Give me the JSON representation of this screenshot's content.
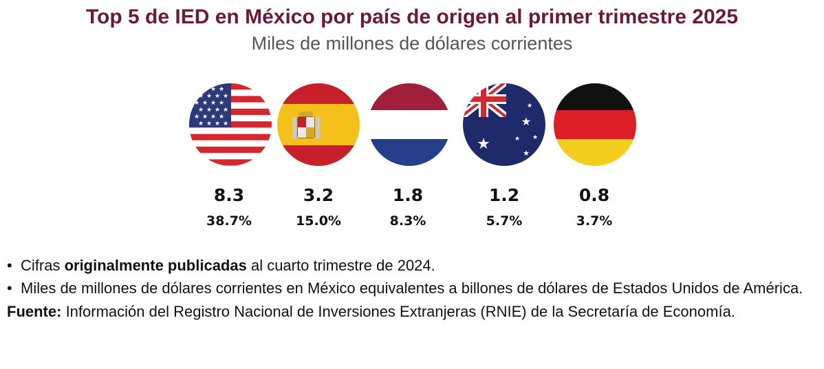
{
  "title": "Top 5 de IED en México por país de origen al primer trimestre 2025",
  "subtitle": "Miles de millones de dólares corrientes",
  "chart_data": {
    "type": "table",
    "title": "Top 5 de IED en México por país de origen al primer trimestre 2025",
    "subtitle": "Miles de millones de dólares corrientes",
    "categories": [
      "Estados Unidos",
      "España",
      "Países Bajos",
      "Australia",
      "Alemania"
    ],
    "values": [
      8.3,
      3.2,
      1.8,
      1.2,
      0.8
    ],
    "value_labels": [
      "8.3",
      "3.2",
      "1.8",
      "1.2",
      "0.8"
    ],
    "shares_percent": [
      38.7,
      15.0,
      8.3,
      5.7,
      3.7
    ],
    "share_labels": [
      "38.7%",
      "15.0%",
      "8.3%",
      "5.7%",
      "3.7%"
    ]
  },
  "flags": [
    {
      "icon": "usa-flag-icon"
    },
    {
      "icon": "spain-flag-icon"
    },
    {
      "icon": "netherlands-flag-icon"
    },
    {
      "icon": "australia-flag-icon"
    },
    {
      "icon": "germany-flag-icon"
    }
  ],
  "notes": {
    "bullet": "•",
    "note1_pre": "Cifras ",
    "note1_bold": "originalmente publicadas",
    "note1_post": " al cuarto trimestre de 2024.",
    "note2": "Miles de millones de dólares corrientes en México equivalentes a billones de dólares de Estados Unidos de América.",
    "source_label": "Fuente:",
    "source_text": " Información del Registro Nacional de Inversiones Extranjeras (RNIE) de la Secretaría de Economía."
  },
  "colors": {
    "title": "#6b1a3c",
    "subtitle": "#555555",
    "usa_red": "#d6262e",
    "usa_blue": "#2d3a7a",
    "spain_red": "#c8202a",
    "spain_yellow": "#f4c01b",
    "nl_red": "#a01f3a",
    "nl_blue": "#263f8c",
    "au_blue": "#1f2a6b",
    "de_black": "#111111",
    "de_red": "#dd1e25",
    "de_gold": "#f5cd1f"
  }
}
